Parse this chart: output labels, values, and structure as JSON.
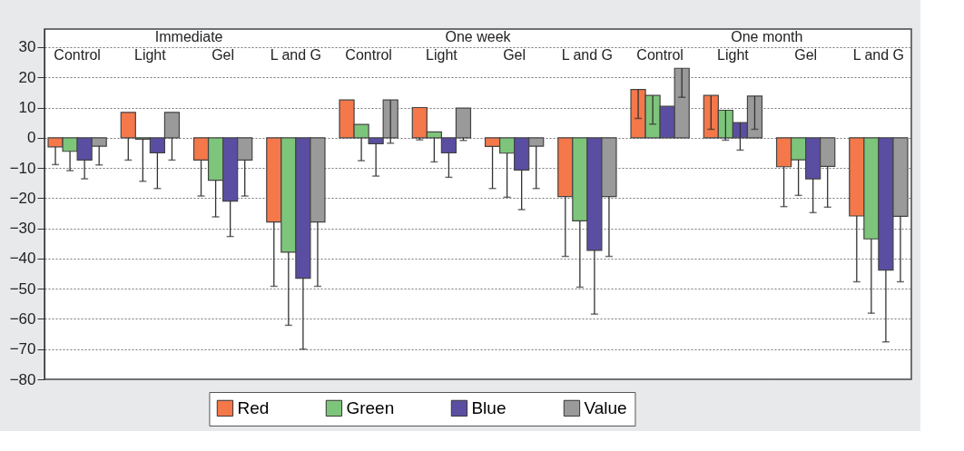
{
  "chart_data": {
    "type": "bar",
    "categories": [
      "Control",
      "Light",
      "Gel",
      "L and G",
      "Control",
      "Light",
      "Gel",
      "L and G",
      "Control",
      "Light",
      "Gel",
      "L and G"
    ],
    "annotations": [
      "Immediate",
      "One week",
      "One month"
    ],
    "series": [
      {
        "name": "Red",
        "color": "#f4784a",
        "values": [
          -3,
          8.4,
          -7.4,
          -27.9,
          12.5,
          10,
          -2.9,
          -19.5,
          16,
          14,
          -9.6,
          -25.9
        ],
        "errors": [
          [
            -8.9,
            -3
          ],
          [
            -7.4,
            0
          ],
          [
            -19.3,
            -7.4
          ],
          [
            -49.2,
            -27.9
          ],
          null,
          [
            -0.7,
            0
          ],
          [
            -16.8,
            -2.9
          ],
          [
            -39.3,
            -19.5
          ],
          [
            6.4,
            16
          ],
          [
            2.8,
            14
          ],
          [
            -22.8,
            -9.6
          ],
          [
            -47.7,
            -25.9
          ]
        ]
      },
      {
        "name": "Green",
        "color": "#7dc57a",
        "values": [
          -4.5,
          -0.5,
          -14.1,
          -37.9,
          4.4,
          1.9,
          -5.1,
          -27.5,
          14,
          9.1,
          -7.3,
          -33.5
        ],
        "errors": [
          [
            -10.9,
            -4.5
          ],
          [
            -14.4,
            -0.5
          ],
          [
            -26.2,
            -14.1
          ],
          [
            -62.1,
            -37.9
          ],
          [
            -7.6,
            0
          ],
          [
            -8,
            0
          ],
          [
            -19.7,
            -5.1
          ],
          [
            -49.5,
            -27.5
          ],
          [
            4.5,
            14
          ],
          [
            -0.8,
            9.1
          ],
          [
            -19.1,
            -7.3
          ],
          [
            -58.1,
            -33.5
          ]
        ]
      },
      {
        "name": "Blue",
        "color": "#5a4ea3",
        "values": [
          -7.4,
          -5,
          -21,
          -46.5,
          -2,
          -5,
          -10.7,
          -37.3,
          10.4,
          5,
          -13.6,
          -43.8
        ],
        "errors": [
          [
            -13.6,
            -7.4
          ],
          [
            -16.8,
            -5
          ],
          [
            -32.7,
            -21
          ],
          [
            -70,
            -46.5
          ],
          [
            -12.7,
            -2
          ],
          [
            -13.1,
            -5
          ],
          [
            -23.8,
            -10.7
          ],
          [
            -58.4,
            -37.3
          ],
          null,
          [
            -4.1,
            5
          ],
          [
            -24.8,
            -13.6
          ],
          [
            -67.6,
            -43.8
          ]
        ]
      },
      {
        "name": "Value",
        "color": "#9a9a9a",
        "values": [
          -2.8,
          8.4,
          -7.4,
          -27.9,
          12.5,
          9.8,
          -2.8,
          -19.5,
          23,
          13.8,
          -9.5,
          -26
        ],
        "errors": [
          [
            -9,
            -2.8
          ],
          [
            -7.4,
            0
          ],
          [
            -19.3,
            -7.4
          ],
          [
            -49.2,
            -27.9
          ],
          [
            -1.8,
            12.5
          ],
          [
            -0.9,
            0
          ],
          [
            -16.8,
            -2.8
          ],
          [
            -39.3,
            -19.5
          ],
          [
            13.4,
            23
          ],
          [
            2.8,
            13.8
          ],
          [
            -23,
            -9.5
          ],
          [
            -47.7,
            -26
          ]
        ]
      }
    ],
    "ylim": [
      -80,
      36
    ],
    "yticks": [
      {
        "value": -80,
        "label": "−80"
      },
      {
        "value": -70,
        "label": "−70"
      },
      {
        "value": -60,
        "label": "−60"
      },
      {
        "value": -50,
        "label": "−50"
      },
      {
        "value": -40,
        "label": "−40"
      },
      {
        "value": -30,
        "label": "−30"
      },
      {
        "value": -20,
        "label": "−20"
      },
      {
        "value": -10,
        "label": "−10"
      },
      0,
      10,
      20,
      30
    ],
    "grid": "y",
    "legend": "bottom"
  }
}
